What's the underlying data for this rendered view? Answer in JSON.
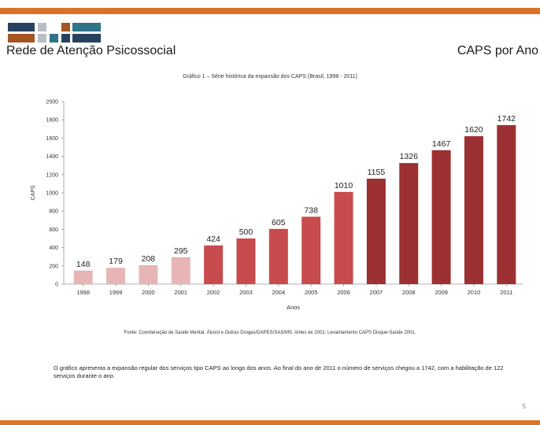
{
  "colors": {
    "accent_orange": "#dd7226",
    "logo_dark_blue": "#27425e",
    "logo_teal": "#2e7387",
    "logo_brown": "#a55423",
    "logo_gray": "#b9bec3",
    "bar_light": "#e8b5b5",
    "bar_mid": "#c84b4e",
    "bar_dark": "#9c3032"
  },
  "header": {
    "left_title": "Rede de Atenção Psicossocial",
    "right_title": "CAPS por Ano"
  },
  "chart_title": "Gráfico 1 – Série histórica da expansão dos CAPS (Brasil, 1998 - 2011)",
  "chart_data": {
    "type": "bar",
    "categories": [
      "1998",
      "1999",
      "2000",
      "2001",
      "2002",
      "2003",
      "2004",
      "2005",
      "2006",
      "2007",
      "2008",
      "2009",
      "2010",
      "2011"
    ],
    "values": [
      148,
      179,
      208,
      295,
      424,
      500,
      605,
      738,
      1010,
      1155,
      1326,
      1467,
      1620,
      1742
    ],
    "xlabel": "Anos",
    "ylabel": "CAPS",
    "ylim": [
      0,
      2000
    ],
    "yticks": [
      0,
      200,
      400,
      600,
      800,
      1000,
      1200,
      1400,
      1600,
      1800,
      2000
    ],
    "grid": false,
    "legend": "none"
  },
  "source_note": "Fonte: Coordenação de Saúde Mental, Álcool e Outras Drogas/DAPES/SAS/MS. Antes de 2001: Levantamento CAPS Disque-Saúde 2001.",
  "description": "O gráfico apresenta a expansão regular dos serviços tipo CAPS ao longo dos anos.  Ao final do ano de 2011 o número de serviços chegou a 1742, com a habilitação  de  122 serviços durante o ano.",
  "page_number": "5"
}
